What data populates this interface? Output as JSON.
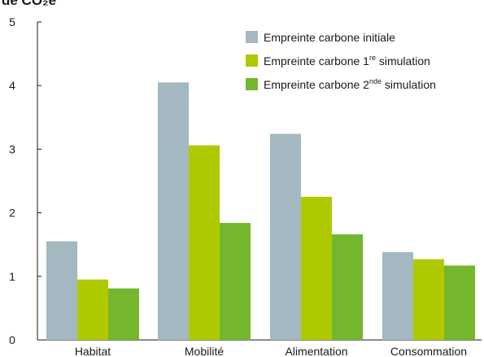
{
  "header": {
    "partial_title": "de CO₂e"
  },
  "chart_data": {
    "type": "bar",
    "categories": [
      "Habitat",
      "Mobilité",
      "Alimentation",
      "Consommation"
    ],
    "series": [
      {
        "name": "Empreinte carbone initiale",
        "legend_main": "Empreinte carbone initiale",
        "legend_sup": "",
        "legend_tail": "",
        "color": "#a3b8c1",
        "values": [
          1.55,
          4.05,
          3.24,
          1.38
        ]
      },
      {
        "name": "Empreinte carbone 1re simulation",
        "legend_main": "Empreinte carbone 1",
        "legend_sup": "re",
        "legend_tail": " simulation",
        "color": "#afc900",
        "values": [
          0.95,
          3.06,
          2.25,
          1.27
        ]
      },
      {
        "name": "Empreinte carbone 2nde simulation",
        "legend_main": "Empreinte carbone 2",
        "legend_sup": "nde",
        "legend_tail": " simulation",
        "color": "#74b72e",
        "values": [
          0.81,
          1.84,
          1.66,
          1.17
        ]
      }
    ],
    "y_ticks": [
      "0",
      "1",
      "2",
      "3",
      "4",
      "5"
    ],
    "ylim": [
      0,
      5
    ],
    "grid": false,
    "legend_position": "top-right"
  }
}
